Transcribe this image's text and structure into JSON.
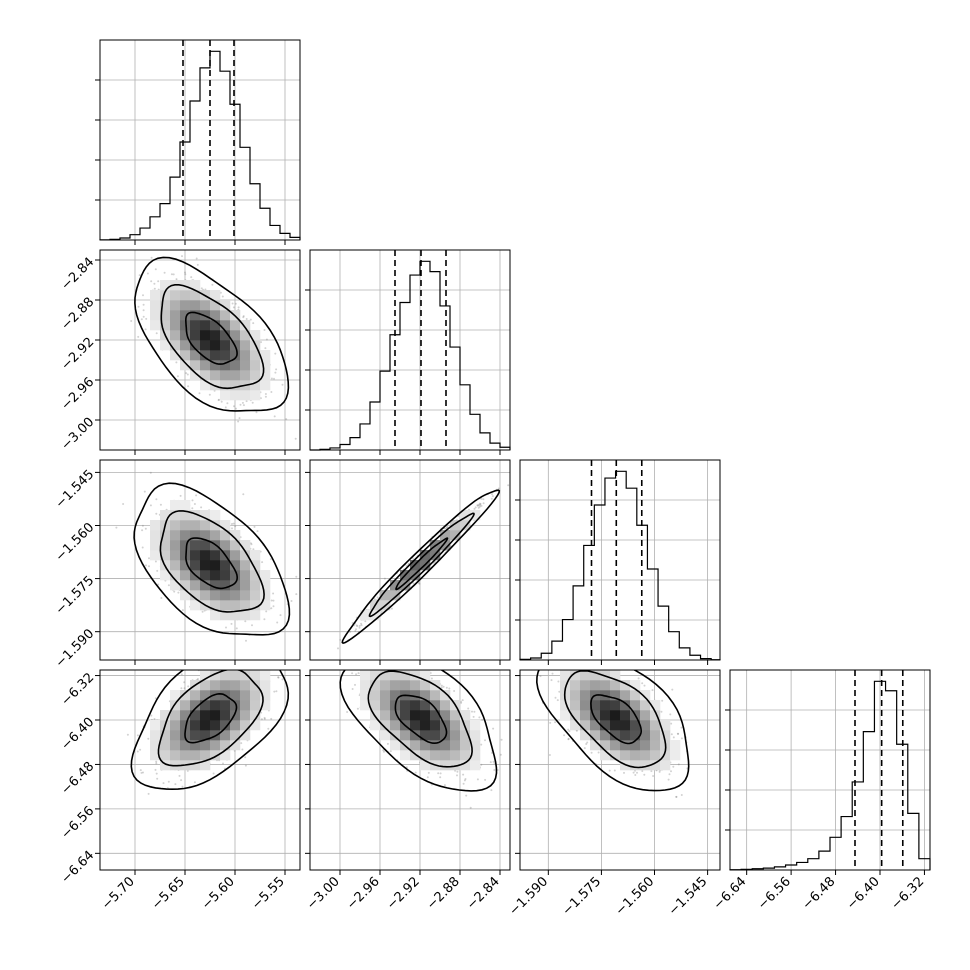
{
  "chart_data": {
    "type": "corner",
    "n_params": 4,
    "params": [
      {
        "range": [
          -5.735,
          -5.535
        ],
        "ticks": [
          -5.7,
          -5.65,
          -5.6,
          -5.55
        ],
        "tick_labels": [
          "−5.70",
          "−5.65",
          "−5.60",
          "−5.55"
        ],
        "quantiles": [
          -5.652,
          -5.625,
          -5.601
        ],
        "hist_bins": [
          -5.735,
          -5.725,
          -5.715,
          -5.705,
          -5.695,
          -5.685,
          -5.675,
          -5.665,
          -5.655,
          -5.645,
          -5.635,
          -5.625,
          -5.615,
          -5.605,
          -5.595,
          -5.585,
          -5.575,
          -5.565,
          -5.555,
          -5.545,
          -5.535
        ],
        "hist_counts": [
          0.3,
          1,
          3,
          8,
          18,
          35,
          55,
          95,
          148,
          210,
          260,
          285,
          255,
          205,
          140,
          85,
          48,
          22,
          10,
          4
        ]
      },
      {
        "range": [
          -3.03,
          -2.83
        ],
        "ticks": [
          -3.0,
          -2.96,
          -2.92,
          -2.88,
          -2.84
        ],
        "tick_labels": [
          "−3.00",
          "−2.96",
          "−2.92",
          "−2.88",
          "−2.84"
        ],
        "quantiles": [
          -2.945,
          -2.919,
          -2.894
        ],
        "hist_bins": [
          -3.03,
          -3.02,
          -3.01,
          -3.0,
          -2.99,
          -2.98,
          -2.97,
          -2.96,
          -2.95,
          -2.94,
          -2.93,
          -2.92,
          -2.91,
          -2.9,
          -2.89,
          -2.88,
          -2.87,
          -2.86,
          -2.85,
          -2.84,
          -2.83
        ],
        "hist_counts": [
          0,
          1,
          3,
          8,
          18,
          38,
          70,
          115,
          168,
          215,
          255,
          275,
          260,
          210,
          150,
          95,
          52,
          25,
          10,
          4
        ]
      },
      {
        "range": [
          -1.598,
          -1.5415
        ],
        "ticks": [
          -1.59,
          -1.575,
          -1.56,
          -1.545
        ],
        "tick_labels": [
          "−1.590",
          "−1.575",
          "−1.560",
          "−1.545"
        ],
        "quantiles": [
          -1.5778,
          -1.5708,
          -1.5636
        ],
        "hist_bins": [
          -1.598,
          -1.595,
          -1.592,
          -1.589,
          -1.586,
          -1.583,
          -1.58,
          -1.577,
          -1.574,
          -1.571,
          -1.568,
          -1.565,
          -1.562,
          -1.559,
          -1.556,
          -1.553,
          -1.55,
          -1.547,
          -1.544,
          -1.5415
        ],
        "hist_counts": [
          1,
          3,
          10,
          28,
          60,
          110,
          170,
          230,
          270,
          280,
          255,
          200,
          135,
          80,
          42,
          18,
          7,
          2,
          0.5
        ]
      },
      {
        "range": [
          -6.67,
          -6.31
        ],
        "ticks": [
          -6.64,
          -6.56,
          -6.48,
          -6.4,
          -6.32
        ],
        "tick_labels": [
          "−6.64",
          "−6.56",
          "−6.48",
          "−6.40",
          "−6.32"
        ],
        "quantiles": [
          -6.445,
          -6.397,
          -6.359
        ],
        "hist_bins": [
          -6.67,
          -6.65,
          -6.63,
          -6.61,
          -6.59,
          -6.57,
          -6.55,
          -6.53,
          -6.51,
          -6.49,
          -6.47,
          -6.45,
          -6.43,
          -6.41,
          -6.39,
          -6.37,
          -6.35,
          -6.33,
          -6.31
        ],
        "hist_counts": [
          0.5,
          1,
          2,
          3,
          5,
          8,
          12,
          18,
          30,
          52,
          85,
          140,
          220,
          300,
          285,
          200,
          90,
          18
        ]
      }
    ],
    "correlations": {
      "1-0": -0.55,
      "2-0": -0.5,
      "2-1": 0.98,
      "3-0": 0.5,
      "3-1": -0.55,
      "3-2": -0.55
    },
    "contour_levels": [
      0.393,
      0.865,
      0.989
    ],
    "grid": true
  }
}
